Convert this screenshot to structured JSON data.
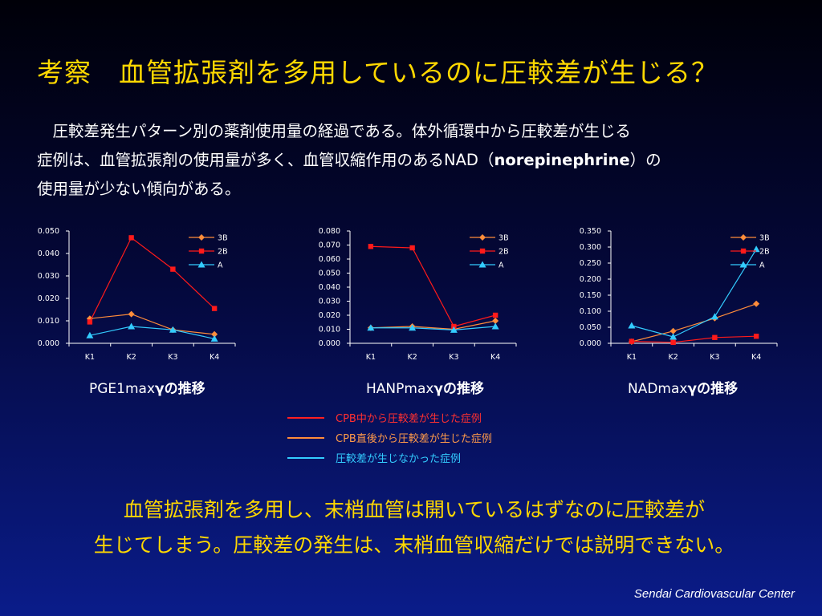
{
  "title": "考察　血管拡張剤を多用しているのに圧較差が生じる？",
  "intro": {
    "line1": "圧較差発生パターン別の薬剤使用量の経過である。体外循環中から圧較差が生じる",
    "line2_a": "症例は、血管拡張剤の使用量が多く、血管収縮作用のあるNAD（",
    "line2_bold": "norepinephrine",
    "line2_b": "）の",
    "line3": "使用量が少ない傾向がある。"
  },
  "legend": {
    "items": [
      {
        "label": "CPB中から圧較差が生じた症例",
        "color": "#ff2020"
      },
      {
        "label": "CPB直後から圧較差が生じた症例",
        "color": "#ff8c3a"
      },
      {
        "label": "圧較差が生じなかった症例",
        "color": "#33ccff"
      }
    ]
  },
  "conclusion": {
    "line1": "血管拡張剤を多用し、末梢血管は開いているはずなのに圧較差が",
    "line2": "生じてしまう。圧較差の発生は、末梢血管収縮だけでは説明できない。"
  },
  "footer": "Sendai Cardiovascular Center",
  "series_colors": {
    "3B": "#ff8c3a",
    "2B": "#ff1a1a",
    "A": "#33ccff"
  },
  "series_markers": {
    "3B": "diamond",
    "2B": "square",
    "A": "triangle"
  },
  "chart_data": [
    {
      "type": "line",
      "title_a": "PGE1max",
      "title_b": "γの推移",
      "categories": [
        "K1",
        "K2",
        "K3",
        "K4"
      ],
      "ylim": [
        0,
        0.05
      ],
      "yticks": [
        "0.000",
        "0.010",
        "0.020",
        "0.030",
        "0.040",
        "0.050"
      ],
      "legend_position": "top-right",
      "series": [
        {
          "name": "3B",
          "values": [
            0.011,
            0.013,
            0.006,
            0.004
          ]
        },
        {
          "name": "2B",
          "values": [
            0.0095,
            0.047,
            0.033,
            0.0155
          ]
        },
        {
          "name": "A",
          "values": [
            0.0035,
            0.0075,
            0.006,
            0.002
          ]
        }
      ]
    },
    {
      "type": "line",
      "title_a": "HANPmax",
      "title_b": "γの推移",
      "categories": [
        "K1",
        "K2",
        "K3",
        "K4"
      ],
      "ylim": [
        0,
        0.08
      ],
      "yticks": [
        "0.000",
        "0.010",
        "0.020",
        "0.030",
        "0.040",
        "0.050",
        "0.060",
        "0.070",
        "0.080"
      ],
      "legend_position": "top-right",
      "series": [
        {
          "name": "3B",
          "values": [
            0.011,
            0.012,
            0.01,
            0.016
          ]
        },
        {
          "name": "2B",
          "values": [
            0.069,
            0.068,
            0.012,
            0.02
          ]
        },
        {
          "name": "A",
          "values": [
            0.011,
            0.011,
            0.0095,
            0.012
          ]
        }
      ]
    },
    {
      "type": "line",
      "title_a": "NADmax",
      "title_b": "γの推移",
      "categories": [
        "K1",
        "K2",
        "K3",
        "K4"
      ],
      "ylim": [
        0,
        0.35
      ],
      "yticks": [
        "0.000",
        "0.050",
        "0.100",
        "0.150",
        "0.200",
        "0.250",
        "0.300",
        "0.350"
      ],
      "legend_position": "top-right",
      "series": [
        {
          "name": "3B",
          "values": [
            0.005,
            0.038,
            0.078,
            0.123
          ]
        },
        {
          "name": "2B",
          "values": [
            0.006,
            0.003,
            0.018,
            0.022
          ]
        },
        {
          "name": "A",
          "values": [
            0.055,
            0.02,
            0.083,
            0.293
          ]
        }
      ]
    }
  ]
}
